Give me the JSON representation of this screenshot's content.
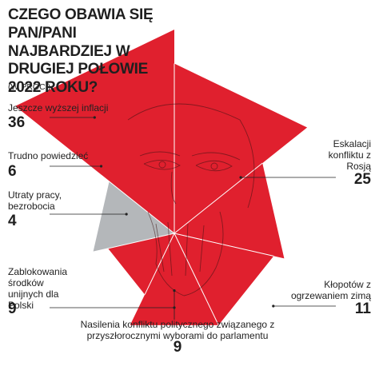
{
  "title": "CZEGO OBAWIA SIĘ PAN/PANI NAJBARDZIEJ W DRUGIEJ POŁOWIE 2022 ROKU?",
  "subtitle": "(W PROC.)",
  "colors": {
    "accent": "#e0202e",
    "grey": "#b4b7ba",
    "line": "#222222",
    "divider": "#ffffff"
  },
  "chart_data": {
    "type": "polar-area",
    "unit": "%",
    "start": "top",
    "direction": "clockwise",
    "categories": [
      "Eskalacji konfliktu z Rosją",
      "Kłopotów z ogrzewaniem zimą",
      "Nasilenia konfliktu politycznego związanego z przyszłorocznymi wyborami do parlamentu",
      "Zablokowania środków unijnych dla Polski",
      "Utraty pracy, bezrobocia",
      "Trudno powiedzieć",
      "Jeszcze wyższej inflacji"
    ],
    "values": [
      25,
      11,
      9,
      9,
      4,
      6,
      36
    ],
    "value_labels": [
      "25",
      "11",
      "9",
      "9",
      "4",
      "6",
      "36"
    ],
    "highlight_colors": [
      "#e0202e",
      "#e0202e",
      "#e0202e",
      "#e0202e",
      "#e0202e",
      "#b4b7ba",
      "#e0202e"
    ]
  }
}
